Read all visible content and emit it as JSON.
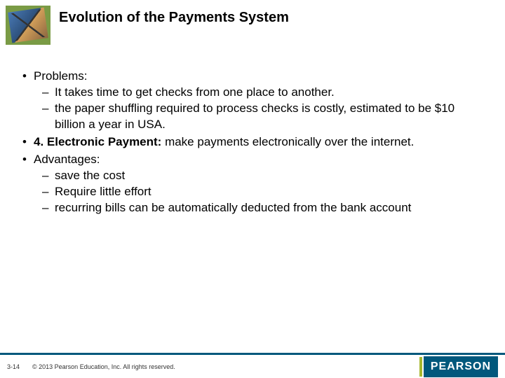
{
  "header": {
    "title": "Evolution of the Payments System"
  },
  "bullets": {
    "b1": "Problems:",
    "b1_1": "It takes time to get checks from one place to another.",
    "b1_2": "the paper shuffling required to process checks is costly, estimated to be $10 billion a year in USA.",
    "b2_bold": "4. Electronic Payment:",
    "b2_rest": " make payments electronically over the internet.",
    "b3": "Advantages:",
    "b3_1": "save the cost",
    "b3_2": "Require little effort",
    "b3_3": "recurring bills can be automatically deducted from the bank account"
  },
  "footer": {
    "page": "3-14",
    "copyright": "© 2013 Pearson Education, Inc. All rights reserved.",
    "logo": "PEARSON"
  },
  "colors": {
    "brand_bar": "#00587c",
    "accent": "#a5b82f",
    "icon_bg": "#7a9b45"
  }
}
